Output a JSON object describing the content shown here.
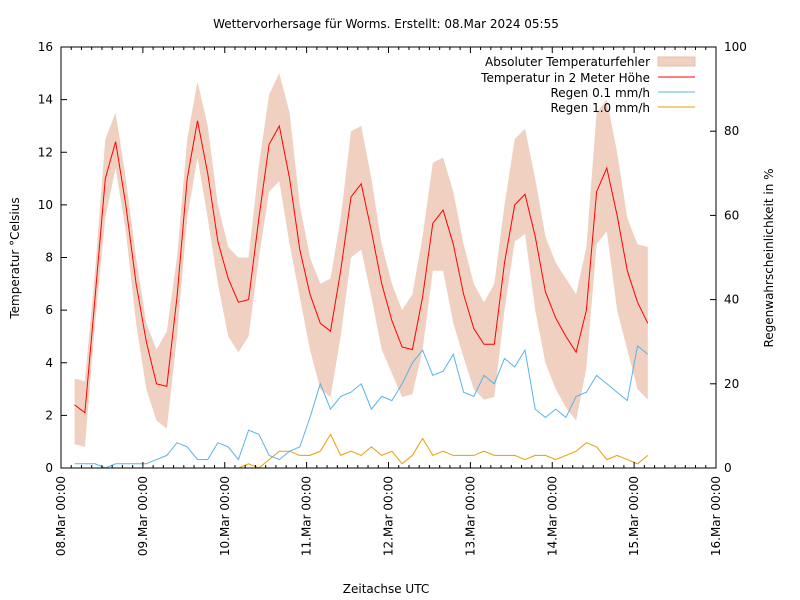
{
  "chart_data": {
    "type": "line",
    "title": "Wettervorhersage für Worms. Erstellt: 08.Mar 2024 05:55",
    "xlabel": "Zeitachse UTC",
    "ylabel": "Temperatur °Celsius",
    "y2label": "Regenwahrscheinlichkeit in %",
    "ylim": [
      0,
      16
    ],
    "y2lim": [
      0,
      100
    ],
    "yticks": [
      "0",
      "2",
      "4",
      "6",
      "8",
      "10",
      "12",
      "14",
      "16"
    ],
    "y2ticks": [
      "0",
      "20",
      "40",
      "60",
      "80",
      "100"
    ],
    "xlim_hours": [
      0,
      192
    ],
    "xticks": [
      "08.Mar 00:00",
      "09.Mar 00:00",
      "10.Mar 00:00",
      "11.Mar 00:00",
      "12.Mar 00:00",
      "13.Mar 00:00",
      "14.Mar 00:00",
      "15.Mar 00:00",
      "16.Mar 00:00"
    ],
    "x_minor_tick_hours": 3,
    "grid": false,
    "legend_position": "top-right",
    "x_hours": [
      4,
      7,
      10,
      13,
      16,
      19,
      22,
      25,
      28,
      31,
      34,
      37,
      40,
      43,
      46,
      49,
      52,
      55,
      58,
      61,
      64,
      67,
      70,
      73,
      76,
      79,
      82,
      85,
      88,
      91,
      94,
      97,
      100,
      103,
      106,
      109,
      112,
      115,
      118,
      121,
      124,
      127,
      130,
      133,
      136,
      139,
      142,
      145,
      148,
      151,
      154,
      157,
      160,
      163,
      166,
      169,
      172
    ],
    "series": [
      {
        "name": "Absoluter Temperaturfehler",
        "kind": "band",
        "axis": "y",
        "color": "#f0d0c0",
        "lower": [
          0.9,
          0.8,
          5.5,
          9.5,
          11.4,
          9.0,
          5.5,
          3.0,
          1.8,
          1.5,
          5.0,
          9.5,
          11.8,
          9.5,
          7.0,
          5.0,
          4.4,
          5.0,
          8.0,
          10.5,
          10.9,
          8.5,
          6.5,
          4.5,
          3.0,
          2.7,
          5.0,
          8.0,
          8.3,
          6.5,
          4.5,
          3.6,
          2.7,
          2.8,
          4.5,
          7.5,
          7.5,
          5.5,
          4.2,
          3.0,
          2.6,
          2.7,
          6.0,
          8.6,
          8.9,
          6.0,
          4.0,
          3.0,
          2.3,
          1.8,
          3.8,
          8.5,
          9.0,
          6.0,
          4.5,
          3.0,
          2.6
        ],
        "upper": [
          3.4,
          3.3,
          7.5,
          12.5,
          13.5,
          11.0,
          8.0,
          5.5,
          4.5,
          5.2,
          8.0,
          12.5,
          14.7,
          13.0,
          10.0,
          8.4,
          8.0,
          8.0,
          11.5,
          14.2,
          15.0,
          13.5,
          10.0,
          8.0,
          7.0,
          7.2,
          9.5,
          12.8,
          13.0,
          11.0,
          8.5,
          7.0,
          6.0,
          6.6,
          8.8,
          11.6,
          11.8,
          10.5,
          8.5,
          7.0,
          6.3,
          7.0,
          10.0,
          12.5,
          12.9,
          11.0,
          8.8,
          7.8,
          7.2,
          6.6,
          8.4,
          13.5,
          14.0,
          12.0,
          9.5,
          8.5,
          8.4
        ]
      },
      {
        "name": "Temperatur in 2 Meter Höhe",
        "kind": "line",
        "axis": "y",
        "color": "#ff0000",
        "values": [
          2.4,
          2.1,
          6.5,
          11.0,
          12.4,
          10.0,
          7.0,
          4.8,
          3.2,
          3.1,
          6.5,
          11.0,
          13.2,
          11.2,
          8.6,
          7.2,
          6.3,
          6.4,
          9.5,
          12.3,
          13.0,
          11.0,
          8.3,
          6.6,
          5.5,
          5.2,
          7.5,
          10.3,
          10.8,
          9.0,
          7.0,
          5.6,
          4.6,
          4.5,
          6.5,
          9.3,
          9.8,
          8.5,
          6.6,
          5.3,
          4.7,
          4.7,
          7.8,
          10.0,
          10.4,
          8.8,
          6.7,
          5.7,
          5.0,
          4.4,
          6.0,
          10.5,
          11.4,
          9.6,
          7.5,
          6.3,
          5.5
        ]
      },
      {
        "name": "Regen 0.1 mm/h",
        "kind": "line",
        "axis": "y2",
        "color": "#56b4e9",
        "values": [
          1,
          1,
          1,
          0,
          1,
          1,
          1,
          1,
          2,
          3,
          6,
          5,
          2,
          2,
          6,
          5,
          2,
          9,
          8,
          3,
          2,
          4,
          5,
          12,
          20,
          14,
          17,
          18,
          20,
          14,
          17,
          16,
          20,
          25,
          28,
          22,
          23,
          27,
          18,
          17,
          22,
          20,
          26,
          24,
          28,
          14,
          12,
          14,
          12,
          17,
          18,
          22,
          20,
          18,
          16,
          29,
          27
        ]
      },
      {
        "name": "Regen 1.0 mm/h",
        "kind": "line",
        "axis": "y2",
        "color": "#e69f00",
        "values": [
          0,
          0,
          0,
          0,
          0,
          0,
          0,
          0,
          0,
          0,
          0,
          0,
          0,
          0,
          0,
          0,
          0,
          1,
          0,
          2,
          4,
          4,
          3,
          3,
          4,
          8,
          3,
          4,
          3,
          5,
          3,
          4,
          1,
          3,
          7,
          3,
          4,
          3,
          3,
          3,
          4,
          3,
          3,
          3,
          2,
          3,
          3,
          2,
          3,
          4,
          6,
          5,
          2,
          3,
          2,
          1,
          3
        ]
      }
    ]
  }
}
